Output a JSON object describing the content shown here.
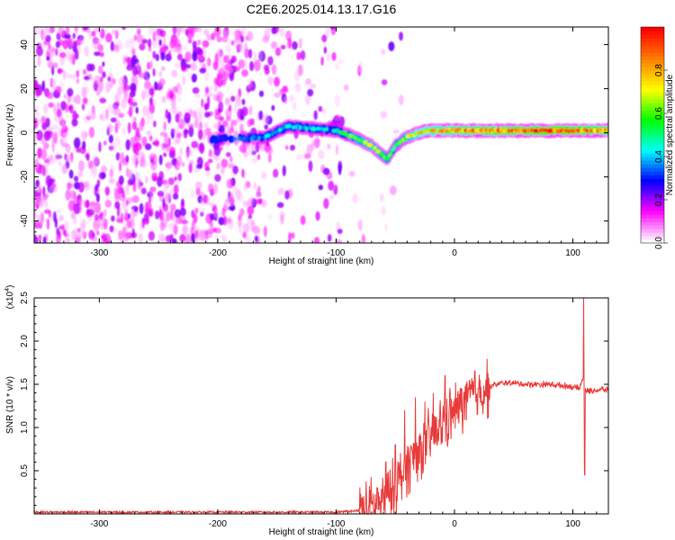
{
  "title": "C2E6.2025.014.13.17.G16",
  "chart_data": [
    {
      "type": "heatmap",
      "xlabel": "Height of straight line (km)",
      "ylabel": "Frequency (Hz)",
      "xlim": [
        -355,
        130
      ],
      "ylim": [
        -50,
        48
      ],
      "xticks": [
        -300,
        -200,
        -100,
        0,
        100
      ],
      "yticks": [
        -40,
        -20,
        0,
        20,
        40
      ],
      "colorbar": {
        "label": "Normalized spectral amplitude",
        "range": [
          0,
          1
        ],
        "ticks": [
          "0.0",
          "0.2",
          "0.4",
          "0.6",
          "0.8"
        ],
        "colormap": [
          "#ffffff",
          "#ff00ff",
          "#0000ff",
          "#00ffff",
          "#00ff00",
          "#ffff00",
          "#ff8000",
          "#ff0000"
        ]
      },
      "ridge": [
        {
          "x": -205,
          "y": -3,
          "amp": 0.3
        },
        {
          "x": -160,
          "y": -2,
          "amp": 0.4
        },
        {
          "x": -140,
          "y": 3,
          "amp": 0.45
        },
        {
          "x": -120,
          "y": 2,
          "amp": 0.45
        },
        {
          "x": -100,
          "y": 1,
          "amp": 0.5
        },
        {
          "x": -85,
          "y": -2,
          "amp": 0.65
        },
        {
          "x": -70,
          "y": -6,
          "amp": 0.7
        },
        {
          "x": -57,
          "y": -12,
          "amp": 0.65
        },
        {
          "x": -50,
          "y": -6,
          "amp": 0.6
        },
        {
          "x": -40,
          "y": -2,
          "amp": 0.7
        },
        {
          "x": -25,
          "y": 1,
          "amp": 0.8
        },
        {
          "x": -10,
          "y": 1,
          "amp": 0.85
        },
        {
          "x": 10,
          "y": 1,
          "amp": 0.9
        },
        {
          "x": 50,
          "y": 1,
          "amp": 0.95
        },
        {
          "x": 90,
          "y": 1,
          "amp": 1.0
        },
        {
          "x": 130,
          "y": 1,
          "amp": 0.9
        }
      ]
    },
    {
      "type": "line",
      "xlabel": "Height of straight line (km)",
      "ylabel": "SNR (10 * v/v)",
      "yscale_label": "(x10",
      "yscale_exp": "4",
      "yscale_close": ")",
      "xlim": [
        -355,
        130
      ],
      "ylim": [
        0,
        2.5
      ],
      "xticks": [
        -300,
        -200,
        -100,
        0,
        100
      ],
      "yticks": [
        0.5,
        1.0,
        1.5,
        2.0,
        2.5
      ],
      "color": "#e83a3a",
      "series": [
        {
          "x": [
            -355,
            -300,
            -250,
            -200,
            -150,
            -100,
            -80,
            -65,
            -55,
            -45,
            -35,
            -25,
            -15,
            -5,
            5,
            15,
            25,
            35,
            45,
            60,
            80,
            95,
            100,
            105,
            107,
            109,
            110,
            112,
            118,
            125,
            130
          ],
          "y": [
            0.02,
            0.02,
            0.02,
            0.02,
            0.02,
            0.02,
            0.04,
            0.08,
            0.2,
            0.45,
            0.65,
            0.8,
            0.95,
            1.1,
            1.25,
            1.38,
            1.45,
            1.5,
            1.52,
            1.5,
            1.5,
            1.48,
            1.47,
            1.45,
            1.5,
            1.6,
            1.45,
            1.42,
            1.43,
            1.44,
            1.43
          ]
        }
      ],
      "spikes": [
        {
          "x": -65,
          "y": 0.3
        },
        {
          "x": -58,
          "y": 0.6
        },
        {
          "x": -50,
          "y": 0.8
        },
        {
          "x": -42,
          "y": 1.2
        },
        {
          "x": -33,
          "y": 1.35
        },
        {
          "x": -25,
          "y": 1.3
        },
        {
          "x": -18,
          "y": 1.4
        },
        {
          "x": -8,
          "y": 1.6
        },
        {
          "x": 5,
          "y": 1.45
        },
        {
          "x": 20,
          "y": 1.45
        },
        {
          "x": 109,
          "y": 2.55
        },
        {
          "x": 110,
          "y": 0.45
        }
      ]
    }
  ]
}
